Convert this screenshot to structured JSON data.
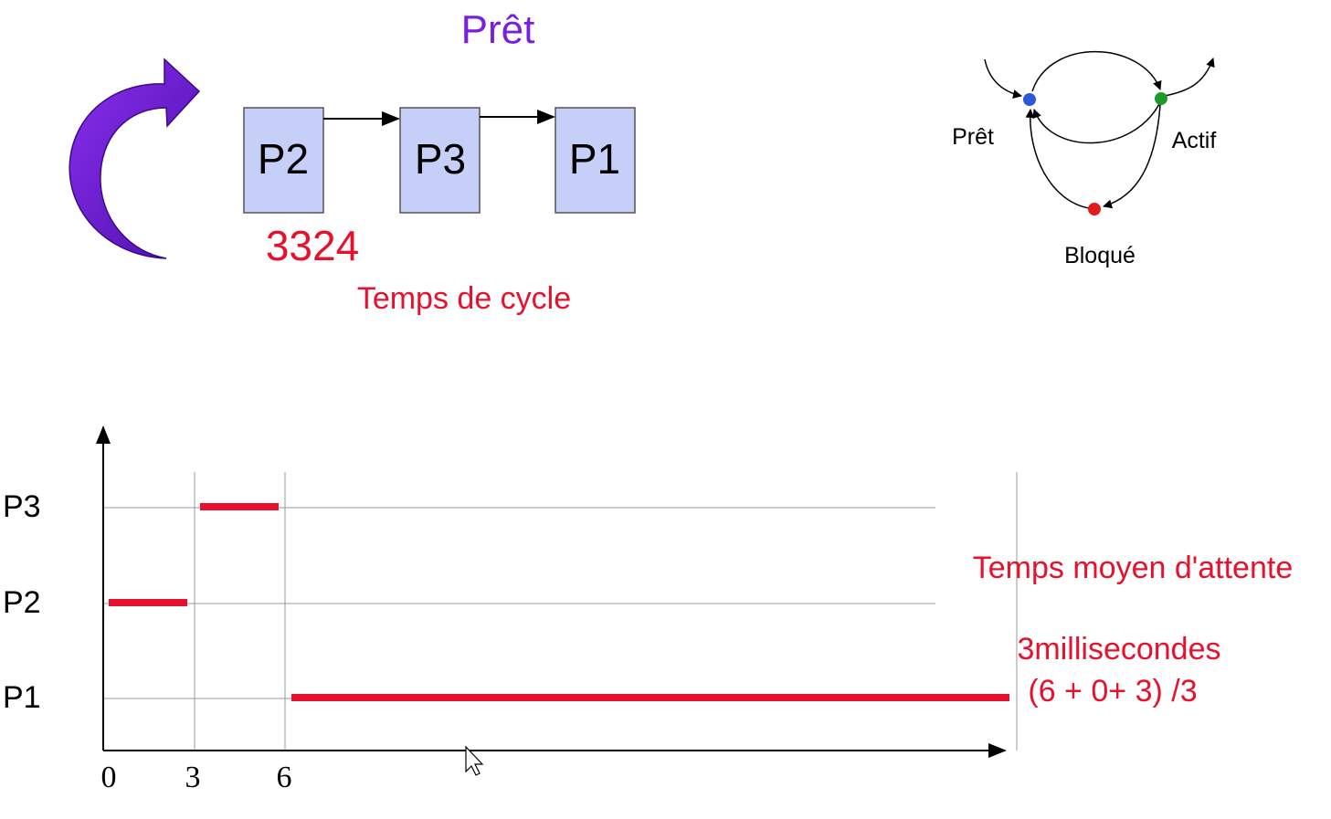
{
  "colors": {
    "purple": "#7a1fe0",
    "red": "#e8112d",
    "box_fill": "#c5cff8",
    "box_stroke": "#555555",
    "grid": "#999999",
    "black": "#000000",
    "blue_dot": "#2a58d6",
    "green_dot": "#1e9a2a",
    "red_dot": "#e21c1c"
  },
  "ready_queue": {
    "title": "Prêt",
    "processes": [
      "P2",
      "P3",
      "P1"
    ],
    "quantum_label": "3324",
    "cycle_label": "Temps de cycle"
  },
  "state_diagram": {
    "ready_label": "Prêt",
    "active_label": "Actif",
    "blocked_label": "Bloqué"
  },
  "chart_data": {
    "type": "gantt",
    "rows": [
      "P3",
      "P2",
      "P1"
    ],
    "x_ticks": [
      0,
      3,
      6
    ],
    "bars": [
      {
        "row": "P2",
        "start": 0,
        "end": 3
      },
      {
        "row": "P3",
        "start": 3,
        "end": 6
      },
      {
        "row": "P1",
        "start": 6,
        "end": 30
      }
    ],
    "vertical_gridlines": [
      3,
      6,
      30
    ],
    "x_max": 40
  },
  "waiting_time": {
    "title": "Temps moyen d'attente",
    "result": "3millisecondes",
    "formula": "(6 + 0+ 3) /3"
  }
}
